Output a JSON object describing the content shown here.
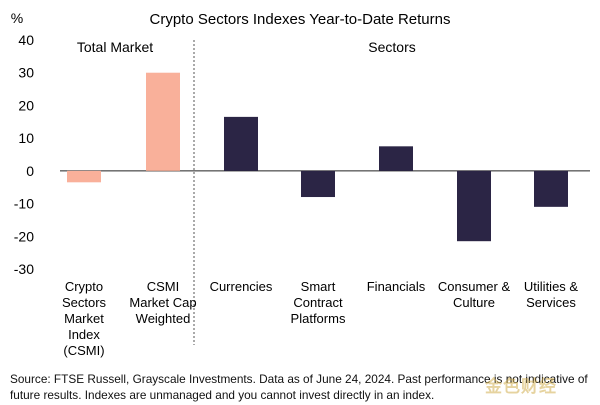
{
  "chart_data": {
    "type": "bar",
    "title": "Crypto Sectors Indexes Year-to-Date Returns",
    "ylabel": "%",
    "ylim": [
      -30,
      40
    ],
    "yticks": [
      40,
      30,
      20,
      10,
      0,
      -10,
      -20,
      -30
    ],
    "grid": false,
    "sections": [
      {
        "label": "Total Market"
      },
      {
        "label": "Sectors"
      }
    ],
    "categories": [
      "Crypto Sectors Market Index (CSMI)",
      "CSMI Market Cap Weighted",
      "Currencies",
      "Smart Contract Platforms",
      "Financials",
      "Consumer & Culture",
      "Utilities & Services"
    ],
    "category_lines": [
      [
        "Crypto",
        "Sectors",
        "Market",
        "Index",
        "(CSMI)"
      ],
      [
        "CSMI",
        "Market Cap",
        "Weighted"
      ],
      [
        "Currencies"
      ],
      [
        "Smart",
        "Contract",
        "Platforms"
      ],
      [
        "Financials"
      ],
      [
        "Consumer &",
        "Culture"
      ],
      [
        "Utilities &",
        "Services"
      ]
    ],
    "values": [
      -3.5,
      30,
      16.5,
      -8,
      7.5,
      -21.5,
      -11
    ],
    "colors": [
      "#F9B09A",
      "#F9B09A",
      "#2B2545",
      "#2B2545",
      "#2B2545",
      "#2B2545",
      "#2B2545"
    ]
  },
  "source_text": "Source: FTSE Russell, Grayscale Investments. Data as of June 24, 2024. Past performance is not indicative of future results. Indexes are unmanaged and you cannot invest directly in an index.",
  "watermark": "金色财经"
}
